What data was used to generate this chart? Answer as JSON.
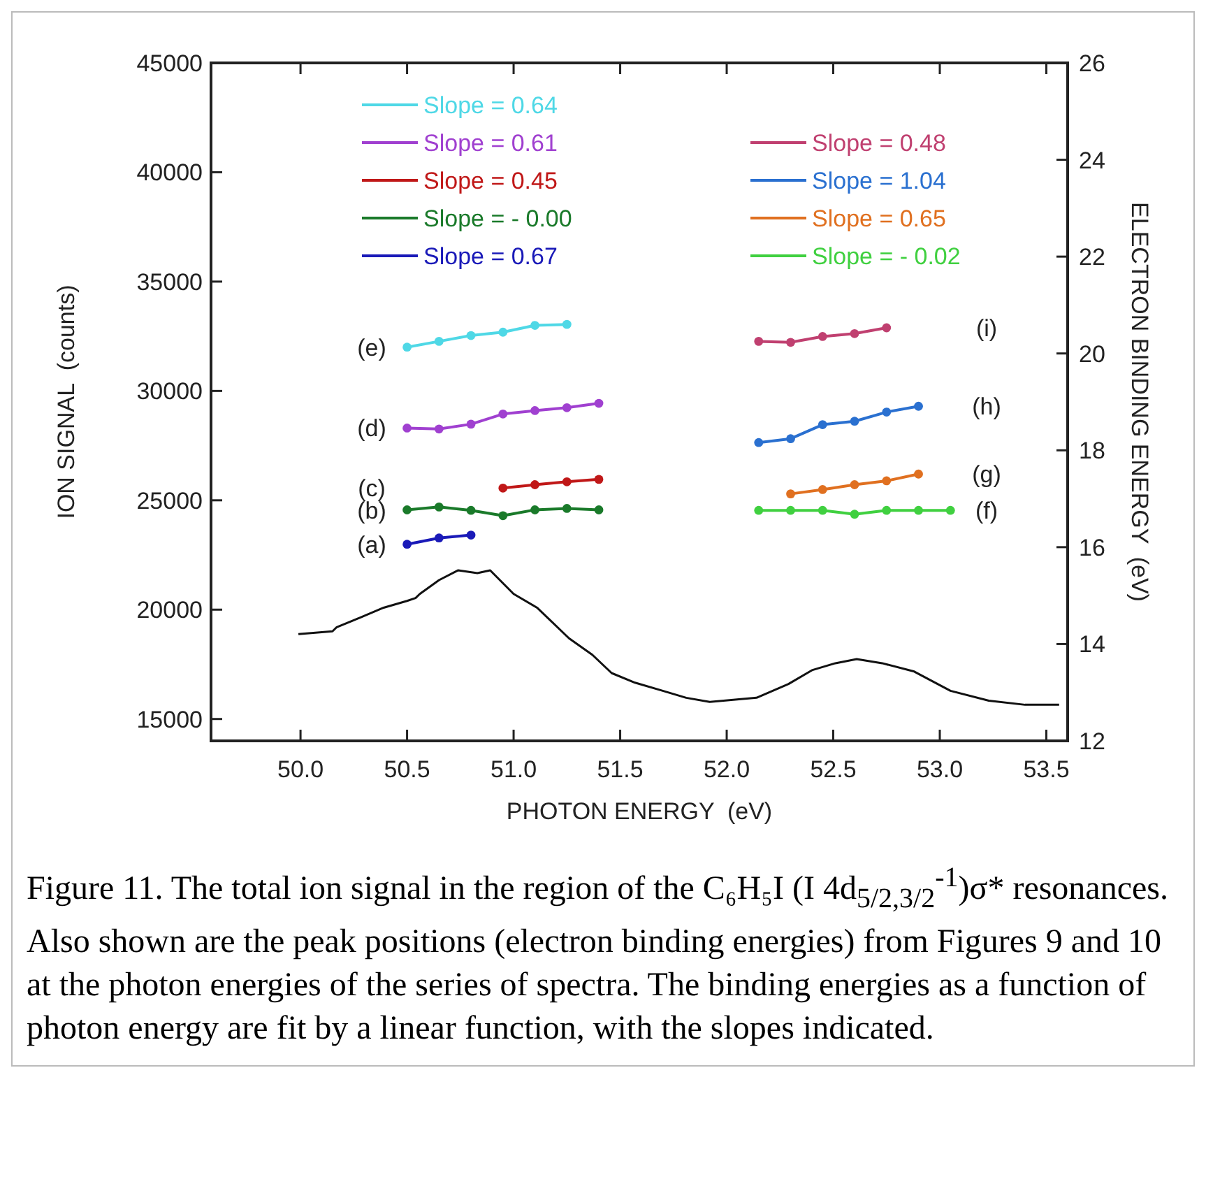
{
  "chart_data": {
    "type": "line",
    "xlabel": "PHOTON ENERGY  (eV)",
    "ylabel": "ION SIGNAL  (counts)",
    "y2label": "ELECTRON BINDING ENERGY  (eV)",
    "xlim": [
      49.58,
      53.6
    ],
    "xticks": [
      {
        "value": 50,
        "label": "50.0"
      },
      {
        "value": 50.5,
        "label": "50.5"
      },
      {
        "value": 51,
        "label": "51.0"
      },
      {
        "value": 51.5,
        "label": "51.5"
      },
      {
        "value": 52,
        "label": "52.0"
      },
      {
        "value": 52.5,
        "label": "52.5"
      },
      {
        "value": 53,
        "label": "53.0"
      },
      {
        "value": 53.5,
        "label": "53.5"
      }
    ],
    "ylim": [
      14000,
      45000
    ],
    "yticks": [
      15000,
      20000,
      25000,
      30000,
      35000,
      40000,
      45000
    ],
    "y2lim": [
      12,
      26
    ],
    "y2ticks": [
      12,
      14,
      16,
      18,
      20,
      22,
      24,
      26
    ],
    "legend": "top",
    "grid": false,
    "series": [
      {
        "color": "#111111",
        "marker": "none",
        "x": [
          49.99,
          50.15,
          50.17,
          50.28,
          50.39,
          50.5,
          50.54,
          50.56,
          50.65,
          50.74,
          50.83,
          50.89,
          51.0,
          51.11,
          51.26,
          51.37,
          51.46,
          51.57,
          51.7,
          51.81,
          51.92,
          52.14,
          52.29,
          52.4,
          52.51,
          52.61,
          52.73,
          52.88,
          53.05,
          53.23,
          53.4,
          53.56
        ],
        "values": [
          18880,
          19010,
          19200,
          19640,
          20090,
          20400,
          20530,
          20720,
          21350,
          21800,
          21670,
          21800,
          20720,
          20090,
          18690,
          17930,
          17100,
          16660,
          16290,
          15970,
          15780,
          15970,
          16600,
          17230,
          17550,
          17740,
          17550,
          17170,
          16290,
          15840,
          15650,
          15650
        ]
      },
      {
        "name": "Slope = 0.64",
        "color": "#4fd8e6",
        "axis": "y2",
        "marker": "circle",
        "x": [
          50.5,
          50.65,
          50.8,
          50.95,
          51.1,
          51.25
        ],
        "values": [
          20.13,
          20.25,
          20.37,
          20.44,
          20.58,
          20.6
        ]
      },
      {
        "name": "Slope = 0.61",
        "color": "#a040d0",
        "axis": "y2",
        "marker": "circle",
        "x": [
          50.5,
          50.65,
          50.8,
          50.95,
          51.1,
          51.25,
          51.4
        ],
        "values": [
          18.46,
          18.44,
          18.54,
          18.75,
          18.82,
          18.88,
          18.97
        ]
      },
      {
        "name": "Slope = 0.45",
        "color": "#c01818",
        "axis": "y2",
        "marker": "circle",
        "x": [
          50.95,
          51.1,
          51.25,
          51.4
        ],
        "values": [
          17.22,
          17.29,
          17.35,
          17.4
        ]
      },
      {
        "name": "Slope = - 0.00",
        "color": "#1a7a2a",
        "axis": "y2",
        "marker": "circle",
        "x": [
          50.5,
          50.65,
          50.8,
          50.95,
          51.1,
          51.25,
          51.4
        ],
        "values": [
          16.77,
          16.83,
          16.76,
          16.65,
          16.77,
          16.8,
          16.77
        ]
      },
      {
        "name": "Slope = 0.67",
        "color": "#1a1ab8",
        "axis": "y2",
        "marker": "circle",
        "x": [
          50.5,
          50.65,
          50.8
        ],
        "values": [
          16.06,
          16.19,
          16.25
        ]
      },
      {
        "name": "Slope = 0.48",
        "color": "#c04070",
        "axis": "y2",
        "marker": "circle",
        "x": [
          52.15,
          52.3,
          52.45,
          52.6,
          52.75
        ],
        "values": [
          20.25,
          20.23,
          20.35,
          20.41,
          20.53
        ]
      },
      {
        "name": "Slope = 1.04",
        "color": "#2a70d0",
        "axis": "y2",
        "marker": "circle",
        "x": [
          52.15,
          52.3,
          52.45,
          52.6,
          52.75,
          52.9
        ],
        "values": [
          18.16,
          18.24,
          18.53,
          18.6,
          18.79,
          18.91
        ]
      },
      {
        "name": "Slope = 0.65",
        "color": "#e07020",
        "axis": "y2",
        "marker": "circle",
        "x": [
          52.3,
          52.45,
          52.6,
          52.75,
          52.9
        ],
        "values": [
          17.1,
          17.19,
          17.29,
          17.37,
          17.51
        ]
      },
      {
        "name": "Slope = - 0.02",
        "color": "#40d040",
        "axis": "y2",
        "marker": "circle",
        "x": [
          52.15,
          52.3,
          52.45,
          52.6,
          52.75,
          52.9,
          53.05
        ],
        "values": [
          16.76,
          16.76,
          16.76,
          16.68,
          16.76,
          16.76,
          16.76
        ]
      }
    ],
    "annotations": [
      "(e)",
      "(d)",
      "(c)",
      "(b)",
      "(a)",
      "(i)",
      "(h)",
      "(g)",
      "(f)",
      "Figure 11. The total ion signal in the region of the C₆H₅I (I 4d$_{5/2,3/2}$$^{-1}$)σ* resonances. Also shown are the peak positions (electron binding energies) from Figures 9 and 10 at the photon energies of the series of spectra. The binding energies as a function of photon energy are fit by a linear function, with the slopes indicated."
    ]
  }
}
